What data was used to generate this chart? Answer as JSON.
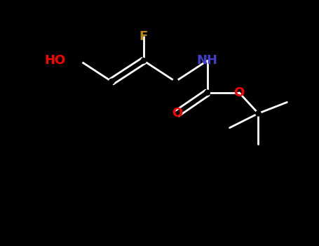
{
  "background_color": "#000000",
  "bond_color": "#ffffff",
  "atom_colors": {
    "F": "#b8860b",
    "O": "#ff0000",
    "N": "#4040cc",
    "HO": "#ff0000",
    "C": "#ffffff"
  },
  "figsize": [
    4.55,
    3.5
  ],
  "dpi": 100,
  "title": ""
}
